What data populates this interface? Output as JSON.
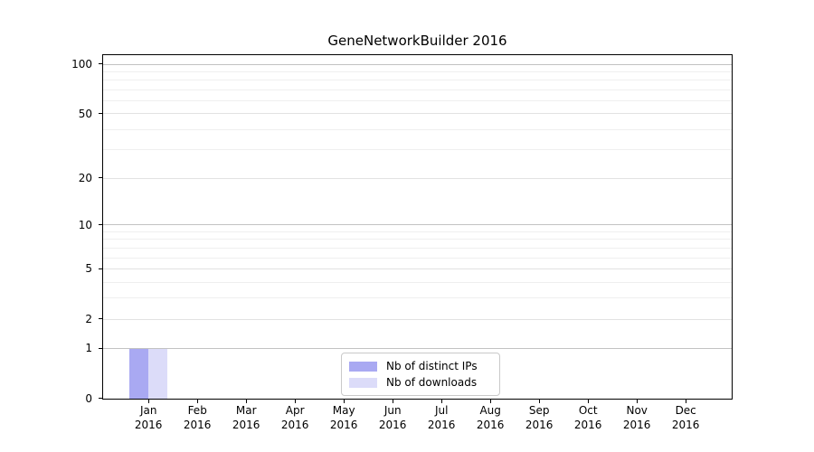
{
  "title": "GeneNetworkBuilder 2016",
  "chart_data": {
    "type": "bar",
    "title": "GeneNetworkBuilder 2016",
    "categories_months": [
      "Jan",
      "Feb",
      "Mar",
      "Apr",
      "May",
      "Jun",
      "Jul",
      "Aug",
      "Sep",
      "Oct",
      "Nov",
      "Dec"
    ],
    "categories_year": "2016",
    "series": [
      {
        "name": "Nb of distinct IPs",
        "color": "#a9a9f2",
        "values": [
          1,
          0,
          0,
          0,
          0,
          0,
          0,
          0,
          0,
          0,
          0,
          0
        ]
      },
      {
        "name": "Nb of downloads",
        "color": "#dcdcf9",
        "values": [
          1,
          0,
          0,
          0,
          0,
          0,
          0,
          0,
          0,
          0,
          0,
          0
        ]
      }
    ],
    "xlabel": "",
    "ylabel": "",
    "y_scale": "log10(1+x)",
    "y_ticks": [
      0,
      1,
      2,
      5,
      10,
      20,
      50,
      100
    ],
    "y_minor_gridline_values": [
      3,
      4,
      6,
      7,
      8,
      9,
      30,
      40,
      60,
      70,
      80,
      90
    ],
    "y_power10_gridline_values": [
      1,
      10,
      100
    ],
    "ylim": [
      0,
      113
    ],
    "grid": true,
    "legend_position": "lower center",
    "colors": {
      "grid_power10": "#c2c2c2",
      "grid_labeled": "#e2e2e2",
      "grid_minor": "#efefef",
      "spine": "#000000",
      "background": "#ffffff"
    }
  }
}
